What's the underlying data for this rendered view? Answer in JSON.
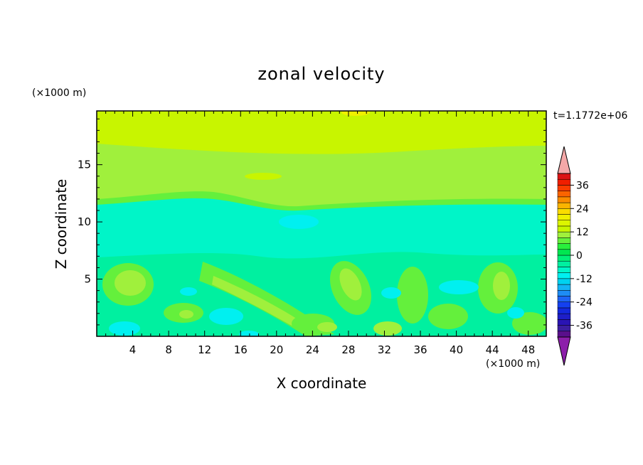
{
  "chart_data": {
    "type": "heatmap",
    "title": "zonal velocity",
    "xlabel": "X coordinate",
    "ylabel": "Z coordinate",
    "x_unit_label": "(×1000 m)",
    "y_unit_label": "(×1000 m)",
    "time_label": "t=1.1772e+06",
    "xlim": [
      0,
      50
    ],
    "ylim": [
      0,
      19.7
    ],
    "x_ticks": [
      4,
      8,
      12,
      16,
      20,
      24,
      28,
      32,
      36,
      40,
      44,
      48
    ],
    "y_ticks": [
      5,
      10,
      15
    ],
    "colorbar": {
      "levels": [
        -42,
        -39,
        -36,
        -33,
        -30,
        -27,
        -24,
        -21,
        -18,
        -15,
        -12,
        -9,
        -6,
        -3,
        0,
        3,
        6,
        9,
        12,
        15,
        18,
        21,
        24,
        27,
        30,
        33,
        36,
        39,
        42
      ],
      "tick_labels": [
        36,
        24,
        12,
        0,
        -12,
        -24,
        -36
      ],
      "colors": [
        "#5a0f8c",
        "#3c1ea0",
        "#2a14b4",
        "#1e1ec8",
        "#1428dc",
        "#1440f0",
        "#1e64f5",
        "#1e8cf5",
        "#14b4f5",
        "#00d2f0",
        "#00f0f0",
        "#00f5c8",
        "#00f0a0",
        "#00f078",
        "#00e650",
        "#28f03c",
        "#64f03c",
        "#a0f03c",
        "#c8f500",
        "#dcf500",
        "#f0f000",
        "#fadc00",
        "#fab400",
        "#fa8c00",
        "#fa6400",
        "#fa3c00",
        "#f01e00",
        "#dc1414"
      ],
      "under_color": "#8c1eaa",
      "over_color": "#f4a8a8"
    },
    "bands": [
      {
        "z_range": [
          17,
          19.7
        ],
        "approx_value_range": [
          6,
          9
        ]
      },
      {
        "z_range": [
          12.2,
          17
        ],
        "approx_value_range": [
          3,
          6
        ]
      },
      {
        "z_range": [
          11.8,
          12.4
        ],
        "approx_value_range": [
          0,
          3
        ]
      },
      {
        "z_range": [
          7.5,
          11.6
        ],
        "approx_value_range": [
          -6,
          -3
        ]
      },
      {
        "z_range": [
          0,
          7.5
        ],
        "approx_value_range": [
          -9,
          6
        ]
      }
    ]
  }
}
